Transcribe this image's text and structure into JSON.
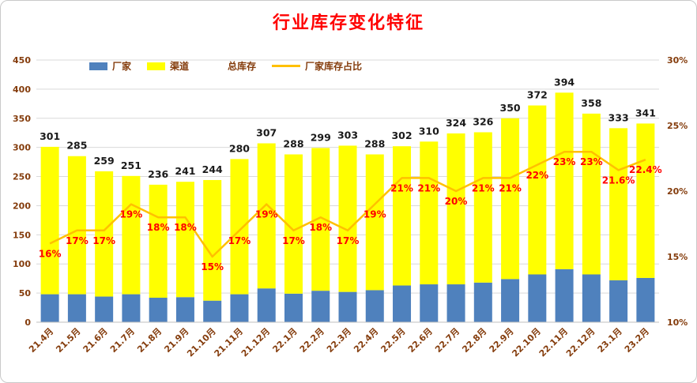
{
  "title": "行业库存变化特征",
  "chart_data": {
    "type": "bar",
    "subtype": "stacked-bars-with-line-overlay",
    "title": "行业库存变化特征",
    "legend_position": "top",
    "grid": true,
    "categories": [
      "21.4月",
      "21.5月",
      "21.6月",
      "21.7月",
      "21.8月",
      "21.9月",
      "21.10月",
      "21.11月",
      "21.12月",
      "22.1月",
      "22.2月",
      "22.3月",
      "22.4月",
      "22.5月",
      "22.6月",
      "22.7月",
      "22.8月",
      "22.9月",
      "22.10月",
      "22.11月",
      "22.12月",
      "23.1月",
      "23.2月"
    ],
    "series": [
      {
        "name": "厂家",
        "type": "bar-stacked",
        "color": "#4F81BD",
        "values": [
          48,
          48,
          44,
          48,
          42,
          43,
          37,
          48,
          58,
          49,
          54,
          52,
          55,
          63,
          65,
          65,
          68,
          74,
          82,
          91,
          82,
          72,
          76
        ]
      },
      {
        "name": "渠道",
        "type": "bar-stacked",
        "color": "#FFFF00",
        "values": [
          253,
          237,
          215,
          203,
          194,
          198,
          207,
          232,
          249,
          239,
          245,
          251,
          233,
          239,
          245,
          259,
          258,
          276,
          290,
          303,
          276,
          261,
          265
        ]
      },
      {
        "name": "总库存",
        "type": "total-data-labels",
        "color": "#1A1A1A",
        "values": [
          301,
          285,
          259,
          251,
          236,
          241,
          244,
          280,
          307,
          288,
          299,
          303,
          288,
          302,
          310,
          324,
          326,
          350,
          372,
          394,
          358,
          333,
          341
        ]
      },
      {
        "name": "厂家库存占比",
        "type": "line",
        "axis": "right",
        "color": "#FFC000",
        "values": [
          16,
          17,
          17,
          19,
          18,
          18,
          15,
          17,
          19,
          17,
          18,
          17,
          19,
          21,
          21,
          20,
          21,
          21,
          22,
          23,
          23,
          21.6,
          22.4
        ],
        "labels": [
          "16%",
          "17%",
          "17%",
          "19%",
          "18%",
          "18%",
          "15%",
          "17%",
          "19%",
          "17%",
          "18%",
          "17%",
          "19%",
          "21%",
          "21%",
          "20%",
          "21%",
          "21%",
          "22%",
          "23%",
          "23%",
          "21.6%",
          "22.4%"
        ]
      }
    ],
    "left_axis": {
      "min": 0,
      "max": 450,
      "step": 50
    },
    "right_axis": {
      "min": 10,
      "max": 30,
      "step": 5,
      "suffix": "%"
    },
    "colors": {
      "title": "#FF0000",
      "axis_text": "#843C0C",
      "grid": "#D9D9D9",
      "axis_line": "#BFBFBF",
      "total_label": "#1A1A1A",
      "percent_label": "#FF0000"
    }
  }
}
